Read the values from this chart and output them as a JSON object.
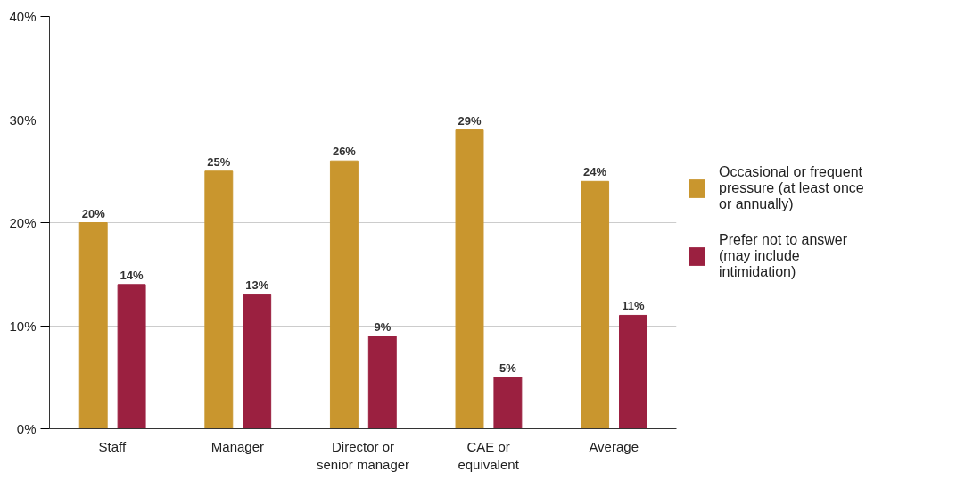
{
  "chart_data": {
    "type": "bar",
    "categories": [
      "Staff",
      "Manager",
      "Director or senior manager",
      "CAE or equivalent",
      "Average"
    ],
    "series": [
      {
        "name": "Occasional or frequent pressure (at least once or annually)",
        "color": "#c9962e",
        "values": [
          20,
          25,
          26,
          29,
          24
        ]
      },
      {
        "name": "Prefer not to answer (may include intimidation)",
        "color": "#9b2040",
        "values": [
          14,
          13,
          9,
          5,
          11
        ]
      }
    ],
    "ylim": [
      0,
      40
    ],
    "yticks": [
      {
        "value": 0,
        "label": "0%"
      },
      {
        "value": 10,
        "label": "10%"
      },
      {
        "value": 20,
        "label": "20%"
      },
      {
        "value": 30,
        "label": "30%"
      },
      {
        "value": 40,
        "label": "40%"
      }
    ],
    "value_labels": [
      [
        "20%",
        "25%",
        "26%",
        "29%",
        "24%"
      ],
      [
        "14%",
        "13%",
        "9%",
        "5%",
        "11%"
      ]
    ],
    "grid": "y",
    "legend": "right"
  }
}
